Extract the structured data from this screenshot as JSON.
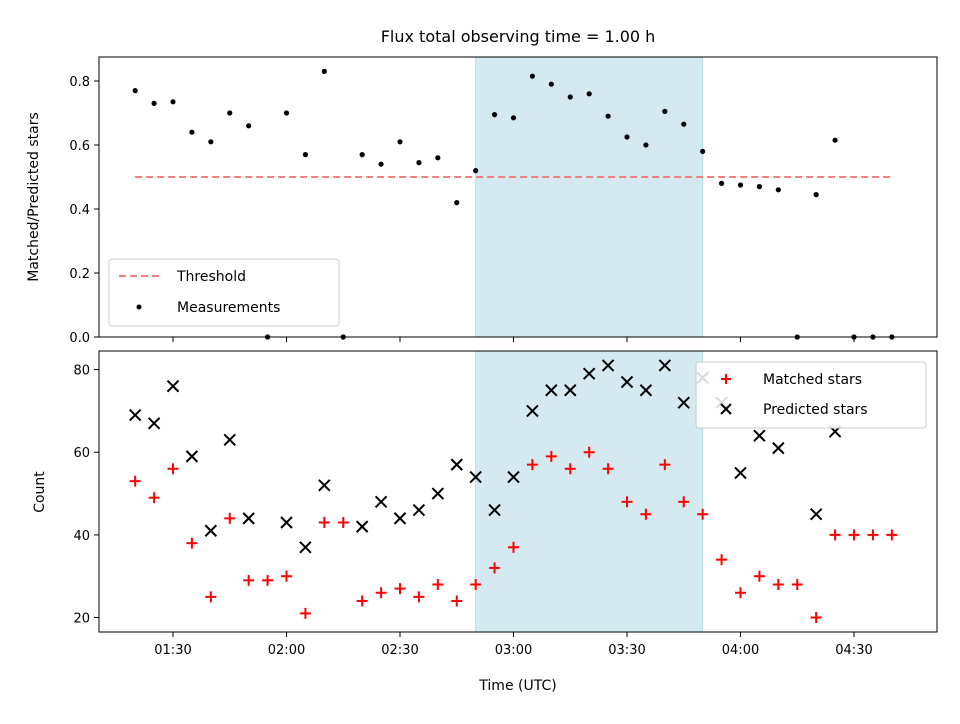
{
  "chart_data": [
    {
      "type": "scatter",
      "title": "Flux total observing time = 1.00 h",
      "xlabel": "",
      "ylabel": "Matched/Predicted stars",
      "ylim": [
        0,
        0.875
      ],
      "yticks": [
        "0.0",
        "0.2",
        "0.4",
        "0.6",
        "0.8"
      ],
      "ytick_values": [
        0,
        0.2,
        0.4,
        0.6,
        0.8
      ],
      "highlight_span": [
        "02:50",
        "03:50"
      ],
      "highlight_color": "#d4eaf0",
      "threshold": {
        "name": "Threshold",
        "y": 0.5,
        "x_range": [
          "01:20",
          "04:40"
        ],
        "color": "#f08080",
        "style": "dashed"
      },
      "series": [
        {
          "name": "Measurements",
          "color": "#000000",
          "marker": "dot",
          "points": [
            [
              "01:20",
              0.77
            ],
            [
              "01:25",
              0.73
            ],
            [
              "01:30",
              0.735
            ],
            [
              "01:35",
              0.64
            ],
            [
              "01:40",
              0.61
            ],
            [
              "01:45",
              0.7
            ],
            [
              "01:50",
              0.66
            ],
            [
              "01:55",
              0.0
            ],
            [
              "02:00",
              0.7
            ],
            [
              "02:05",
              0.57
            ],
            [
              "02:10",
              0.83
            ],
            [
              "02:15",
              0.0
            ],
            [
              "02:20",
              0.57
            ],
            [
              "02:25",
              0.54
            ],
            [
              "02:30",
              0.61
            ],
            [
              "02:35",
              0.545
            ],
            [
              "02:40",
              0.56
            ],
            [
              "02:45",
              0.42
            ],
            [
              "02:50",
              0.52
            ],
            [
              "02:55",
              0.695
            ],
            [
              "03:00",
              0.685
            ],
            [
              "03:05",
              0.815
            ],
            [
              "03:10",
              0.79
            ],
            [
              "03:15",
              0.75
            ],
            [
              "03:20",
              0.76
            ],
            [
              "03:25",
              0.69
            ],
            [
              "03:30",
              0.625
            ],
            [
              "03:35",
              0.6
            ],
            [
              "03:40",
              0.705
            ],
            [
              "03:45",
              0.665
            ],
            [
              "03:50",
              0.58
            ],
            [
              "03:55",
              0.48
            ],
            [
              "04:00",
              0.475
            ],
            [
              "04:05",
              0.47
            ],
            [
              "04:10",
              0.46
            ],
            [
              "04:15",
              0.0
            ],
            [
              "04:20",
              0.445
            ],
            [
              "04:25",
              0.615
            ],
            [
              "04:30",
              0.0
            ],
            [
              "04:35",
              0.0
            ],
            [
              "04:40",
              0.0
            ]
          ]
        }
      ],
      "legend_position": "lower-left"
    },
    {
      "type": "scatter",
      "title": "",
      "xlabel": "Time (UTC)",
      "ylabel": "Count",
      "ylim": [
        16.5,
        84.5
      ],
      "yticks": [
        "20",
        "40",
        "60",
        "80"
      ],
      "ytick_values": [
        20,
        40,
        60,
        80
      ],
      "xticks": [
        "01:30",
        "02:00",
        "02:30",
        "03:00",
        "03:30",
        "04:00",
        "04:30"
      ],
      "highlight_span": [
        "02:50",
        "03:50"
      ],
      "highlight_color": "#d4eaf0",
      "series": [
        {
          "name": "Matched stars",
          "color": "#ff0000",
          "marker": "plus",
          "points": [
            [
              "01:20",
              53
            ],
            [
              "01:25",
              49
            ],
            [
              "01:30",
              56
            ],
            [
              "01:35",
              38
            ],
            [
              "01:40",
              25
            ],
            [
              "01:45",
              44
            ],
            [
              "01:50",
              29
            ],
            [
              "01:55",
              29
            ],
            [
              "02:00",
              30
            ],
            [
              "02:05",
              21
            ],
            [
              "02:10",
              43
            ],
            [
              "02:15",
              43
            ],
            [
              "02:20",
              24
            ],
            [
              "02:25",
              26
            ],
            [
              "02:30",
              27
            ],
            [
              "02:35",
              25
            ],
            [
              "02:40",
              28
            ],
            [
              "02:45",
              24
            ],
            [
              "02:50",
              28
            ],
            [
              "02:55",
              32
            ],
            [
              "03:00",
              37
            ],
            [
              "03:05",
              57
            ],
            [
              "03:10",
              59
            ],
            [
              "03:15",
              56
            ],
            [
              "03:20",
              60
            ],
            [
              "03:25",
              56
            ],
            [
              "03:30",
              48
            ],
            [
              "03:35",
              45
            ],
            [
              "03:40",
              57
            ],
            [
              "03:45",
              48
            ],
            [
              "03:50",
              45
            ],
            [
              "03:55",
              34
            ],
            [
              "04:00",
              26
            ],
            [
              "04:05",
              30
            ],
            [
              "04:10",
              28
            ],
            [
              "04:15",
              28
            ],
            [
              "04:20",
              20
            ],
            [
              "04:25",
              40
            ],
            [
              "04:30",
              40
            ],
            [
              "04:35",
              40
            ],
            [
              "04:40",
              40
            ]
          ]
        },
        {
          "name": "Predicted stars",
          "color": "#000000",
          "marker": "x",
          "points": [
            [
              "01:20",
              69
            ],
            [
              "01:25",
              67
            ],
            [
              "01:30",
              76
            ],
            [
              "01:35",
              59
            ],
            [
              "01:40",
              41
            ],
            [
              "01:45",
              63
            ],
            [
              "01:50",
              44
            ],
            [
              "02:00",
              43
            ],
            [
              "02:05",
              37
            ],
            [
              "02:10",
              52
            ],
            [
              "02:20",
              42
            ],
            [
              "02:25",
              48
            ],
            [
              "02:30",
              44
            ],
            [
              "02:35",
              46
            ],
            [
              "02:40",
              50
            ],
            [
              "02:45",
              57
            ],
            [
              "02:50",
              54
            ],
            [
              "02:55",
              46
            ],
            [
              "03:00",
              54
            ],
            [
              "03:05",
              70
            ],
            [
              "03:10",
              75
            ],
            [
              "03:15",
              75
            ],
            [
              "03:20",
              79
            ],
            [
              "03:25",
              81
            ],
            [
              "03:30",
              77
            ],
            [
              "03:35",
              75
            ],
            [
              "03:40",
              81
            ],
            [
              "03:45",
              72
            ],
            [
              "03:50",
              78
            ],
            [
              "03:55",
              72
            ],
            [
              "04:00",
              55
            ],
            [
              "04:05",
              64
            ],
            [
              "04:10",
              61
            ],
            [
              "04:20",
              45
            ],
            [
              "04:25",
              65
            ]
          ]
        }
      ],
      "legend_position": "upper-right"
    }
  ]
}
